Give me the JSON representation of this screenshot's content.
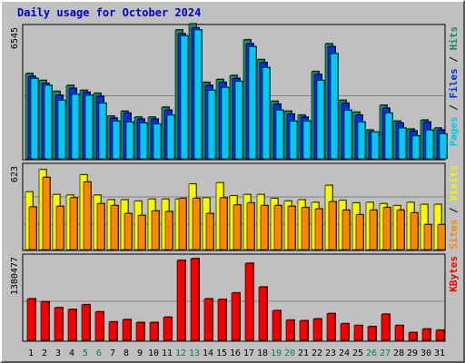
{
  "title": "Daily usage for October 2024",
  "colors": {
    "pages": "#00c8f0",
    "files": "#0030e0",
    "hits": "#208860",
    "visits": "#f8f800",
    "sites": "#f88800",
    "kbytes": "#f00000",
    "weekend_day": "#00805c",
    "weekday": "#000000",
    "panel_bg": "#c0c0c0",
    "grid": "#808080"
  },
  "chart_data": [
    {
      "type": "bar",
      "panel": "hits-files-pages",
      "max_label": "6545",
      "label_parts": [
        {
          "text": "Pages",
          "color": "#00c8f0"
        },
        {
          "text": " / ",
          "color": "#000000"
        },
        {
          "text": "Files",
          "color": "#0030e0"
        },
        {
          "text": " / ",
          "color": "#000000"
        },
        {
          "text": "Hits",
          "color": "#208860"
        }
      ],
      "ylim": [
        0,
        6545
      ],
      "categories": [
        "1",
        "2",
        "3",
        "4",
        "5",
        "6",
        "7",
        "8",
        "9",
        "10",
        "11",
        "12",
        "13",
        "14",
        "15",
        "16",
        "17",
        "18",
        "19",
        "20",
        "21",
        "22",
        "23",
        "24",
        "25",
        "26",
        "27",
        "28",
        "29",
        "30",
        "31"
      ],
      "series": [
        {
          "name": "Hits",
          "values": [
            4300,
            3950,
            3400,
            3700,
            3450,
            3300,
            2150,
            2400,
            2100,
            2100,
            2600,
            6500,
            6800,
            3850,
            4000,
            4200,
            6000,
            5000,
            2900,
            2400,
            2200,
            4400,
            5800,
            2950,
            2350,
            1450,
            2700,
            1900,
            1500,
            1950,
            1550
          ]
        },
        {
          "name": "Files",
          "values": [
            4150,
            3800,
            3200,
            3550,
            3350,
            3150,
            2050,
            2300,
            2000,
            2000,
            2450,
            6300,
            6600,
            3700,
            3850,
            4050,
            5800,
            4850,
            2750,
            2250,
            2100,
            4250,
            5650,
            2800,
            2200,
            1350,
            2550,
            1800,
            1400,
            1850,
            1450
          ]
        },
        {
          "name": "Pages",
          "values": [
            4050,
            3700,
            2950,
            3250,
            3200,
            2800,
            1900,
            1850,
            1800,
            1750,
            2200,
            6200,
            6500,
            3450,
            3600,
            3900,
            5650,
            4600,
            2450,
            1900,
            1900,
            3950,
            5300,
            2450,
            1850,
            1350,
            2300,
            1550,
            1150,
            1450,
            1250
          ]
        }
      ]
    },
    {
      "type": "bar",
      "panel": "visits-sites",
      "max_label": "623",
      "label_parts": [
        {
          "text": "Sites",
          "color": "#f88800"
        },
        {
          "text": " / ",
          "color": "#000000"
        },
        {
          "text": "Visits",
          "color": "#f8f800"
        }
      ],
      "ylim": [
        0,
        623
      ],
      "categories": [
        "1",
        "2",
        "3",
        "4",
        "5",
        "6",
        "7",
        "8",
        "9",
        "10",
        "11",
        "12",
        "13",
        "14",
        "15",
        "16",
        "17",
        "18",
        "19",
        "20",
        "21",
        "22",
        "23",
        "24",
        "25",
        "26",
        "27",
        "28",
        "29",
        "30",
        "31"
      ],
      "series": [
        {
          "name": "Visits",
          "values": [
            440,
            610,
            420,
            415,
            570,
            415,
            380,
            380,
            370,
            385,
            385,
            385,
            500,
            395,
            510,
            410,
            420,
            420,
            390,
            370,
            380,
            360,
            490,
            375,
            355,
            360,
            350,
            335,
            360,
            345,
            345
          ]
        },
        {
          "name": "Sites",
          "values": [
            325,
            550,
            330,
            395,
            515,
            350,
            335,
            275,
            260,
            295,
            290,
            390,
            390,
            275,
            395,
            340,
            355,
            335,
            335,
            330,
            320,
            310,
            365,
            300,
            265,
            300,
            320,
            300,
            280,
            190,
            190
          ]
        }
      ]
    },
    {
      "type": "bar",
      "panel": "kbytes",
      "max_label": "1380477",
      "label_parts": [
        {
          "text": "KBytes",
          "color": "#f00000"
        }
      ],
      "ylim": [
        0,
        1380477
      ],
      "categories": [
        "1",
        "2",
        "3",
        "4",
        "5",
        "6",
        "7",
        "8",
        "9",
        "10",
        "11",
        "12",
        "13",
        "14",
        "15",
        "16",
        "17",
        "18",
        "19",
        "20",
        "21",
        "22",
        "23",
        "24",
        "25",
        "26",
        "27",
        "28",
        "29",
        "30",
        "31"
      ],
      "series": [
        {
          "name": "KBytes",
          "values": [
            700000,
            650000,
            550000,
            520000,
            600000,
            480000,
            310000,
            350000,
            300000,
            300000,
            390000,
            1350000,
            1380477,
            700000,
            690000,
            800000,
            1300000,
            900000,
            500000,
            340000,
            330000,
            360000,
            450000,
            280000,
            250000,
            230000,
            440000,
            250000,
            130000,
            190000,
            170000
          ]
        }
      ]
    }
  ]
}
